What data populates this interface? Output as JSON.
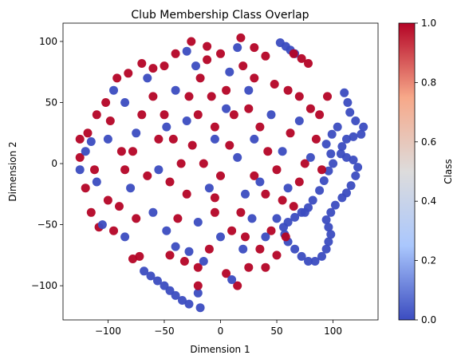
{
  "chart_data": {
    "type": "scatter",
    "title": "Club Membership Class Overlap",
    "xlabel": "Dimension 1",
    "ylabel": "Dimension 2",
    "xlim": [
      -140,
      140
    ],
    "ylim": [
      -128,
      115
    ],
    "xticks": [
      -100,
      -50,
      0,
      50,
      100
    ],
    "yticks": [
      -100,
      -50,
      0,
      50,
      100
    ],
    "grid": false,
    "legend": "none",
    "colormap": "coolwarm",
    "colormap_colors": [
      "#3b4cc0",
      "#aac7fd",
      "#dddcdc",
      "#f7a889",
      "#b40426"
    ],
    "colorbar": {
      "label": "Class",
      "range": [
        0,
        1
      ],
      "ticks": [
        0.0,
        0.2,
        0.4,
        0.6,
        0.8,
        1.0
      ],
      "tick_labels": [
        "0.0",
        "0.2",
        "0.4",
        "0.6",
        "0.8",
        "1.0"
      ]
    },
    "series": [
      {
        "class": 0,
        "color": "#3b4cc0",
        "points": [
          [
            110,
            58
          ],
          [
            113,
            50
          ],
          [
            115,
            42
          ],
          [
            120,
            35
          ],
          [
            127,
            30
          ],
          [
            125,
            24
          ],
          [
            118,
            22
          ],
          [
            112,
            20
          ],
          [
            108,
            14
          ],
          [
            107,
            8
          ],
          [
            112,
            5
          ],
          [
            118,
            3
          ],
          [
            122,
            -3
          ],
          [
            120,
            -10
          ],
          [
            116,
            -18
          ],
          [
            112,
            -24
          ],
          [
            108,
            -28
          ],
          [
            102,
            -34
          ],
          [
            98,
            -40
          ],
          [
            94,
            -46
          ],
          [
            96,
            -52
          ],
          [
            98,
            -58
          ],
          [
            96,
            -64
          ],
          [
            94,
            -70
          ],
          [
            90,
            -76
          ],
          [
            84,
            -80
          ],
          [
            78,
            -80
          ],
          [
            72,
            -76
          ],
          [
            66,
            -70
          ],
          [
            60,
            -64
          ],
          [
            57,
            -58
          ],
          [
            56,
            -52
          ],
          [
            60,
            -48
          ],
          [
            66,
            -44
          ],
          [
            72,
            -40
          ],
          [
            78,
            -36
          ],
          [
            82,
            -30
          ],
          [
            88,
            -22
          ],
          [
            92,
            -14
          ],
          [
            96,
            -6
          ],
          [
            100,
            0
          ],
          [
            98,
            8
          ],
          [
            94,
            16
          ],
          [
            99,
            24
          ],
          [
            104,
            30
          ],
          [
            53,
            99
          ],
          [
            58,
            96
          ],
          [
            62,
            93
          ],
          [
            66,
            90
          ],
          [
            -68,
            -88
          ],
          [
            -62,
            -92
          ],
          [
            -56,
            -96
          ],
          [
            -50,
            -100
          ],
          [
            -45,
            -104
          ],
          [
            -40,
            -108
          ],
          [
            -34,
            -112
          ],
          [
            -28,
            -115
          ],
          [
            -20,
            -106
          ],
          [
            -18,
            -118
          ],
          [
            -30,
            92
          ],
          [
            -22,
            80
          ],
          [
            -40,
            60
          ],
          [
            -48,
            30
          ],
          [
            -55,
            -5
          ],
          [
            -60,
            -40
          ],
          [
            -48,
            -55
          ],
          [
            -40,
            -68
          ],
          [
            -28,
            -72
          ],
          [
            -20,
            -48
          ],
          [
            -10,
            -20
          ],
          [
            -5,
            20
          ],
          [
            5,
            45
          ],
          [
            8,
            75
          ],
          [
            15,
            95
          ],
          [
            25,
            60
          ],
          [
            30,
            20
          ],
          [
            35,
            -15
          ],
          [
            28,
            -45
          ],
          [
            20,
            -70
          ],
          [
            10,
            -95
          ],
          [
            -95,
            60
          ],
          [
            -100,
            20
          ],
          [
            -110,
            -15
          ],
          [
            -105,
            -50
          ],
          [
            -85,
            -60
          ],
          [
            -80,
            -20
          ],
          [
            -75,
            25
          ],
          [
            -85,
            50
          ],
          [
            45,
            40
          ],
          [
            55,
            10
          ],
          [
            60,
            -20
          ],
          [
            50,
            -45
          ],
          [
            40,
            -60
          ],
          [
            70,
            35
          ],
          [
            80,
            5
          ],
          [
            75,
            -40
          ],
          [
            -120,
            10
          ],
          [
            -115,
            18
          ],
          [
            -125,
            -5
          ],
          [
            -65,
            70
          ],
          [
            -30,
            35
          ],
          [
            -15,
            -80
          ],
          [
            0,
            -60
          ],
          [
            15,
            5
          ],
          [
            22,
            -25
          ]
        ]
      },
      {
        "class": 1,
        "color": "#b40426",
        "points": [
          [
            -26,
            100
          ],
          [
            -12,
            96
          ],
          [
            0,
            90
          ],
          [
            18,
            103
          ],
          [
            30,
            95
          ],
          [
            40,
            88
          ],
          [
            -40,
            90
          ],
          [
            -50,
            80
          ],
          [
            -60,
            78
          ],
          [
            -70,
            82
          ],
          [
            -82,
            74
          ],
          [
            -92,
            70
          ],
          [
            -102,
            50
          ],
          [
            -110,
            40
          ],
          [
            -118,
            25
          ],
          [
            -125,
            5
          ],
          [
            -120,
            -20
          ],
          [
            -115,
            -40
          ],
          [
            -108,
            -52
          ],
          [
            -95,
            -55
          ],
          [
            -90,
            -35
          ],
          [
            -85,
            -5
          ],
          [
            -78,
            10
          ],
          [
            -70,
            40
          ],
          [
            -60,
            55
          ],
          [
            -50,
            40
          ],
          [
            -42,
            20
          ],
          [
            -35,
            0
          ],
          [
            -30,
            -25
          ],
          [
            -38,
            -45
          ],
          [
            -45,
            -75
          ],
          [
            -32,
            -80
          ],
          [
            -20,
            -85
          ],
          [
            -10,
            -70
          ],
          [
            -5,
            -40
          ],
          [
            0,
            -10
          ],
          [
            8,
            15
          ],
          [
            12,
            40
          ],
          [
            -8,
            55
          ],
          [
            -18,
            70
          ],
          [
            20,
            80
          ],
          [
            25,
            45
          ],
          [
            35,
            30
          ],
          [
            42,
            10
          ],
          [
            50,
            -5
          ],
          [
            55,
            -30
          ],
          [
            45,
            -55
          ],
          [
            35,
            -70
          ],
          [
            25,
            -85
          ],
          [
            15,
            -100
          ],
          [
            5,
            -90
          ],
          [
            60,
            60
          ],
          [
            70,
            55
          ],
          [
            80,
            45
          ],
          [
            88,
            40
          ],
          [
            95,
            55
          ],
          [
            85,
            20
          ],
          [
            75,
            0
          ],
          [
            70,
            -15
          ],
          [
            65,
            -35
          ],
          [
            58,
            -60
          ],
          [
            50,
            -75
          ],
          [
            40,
            -85
          ],
          [
            65,
            90
          ],
          [
            72,
            86
          ],
          [
            78,
            82
          ],
          [
            -78,
            -78
          ],
          [
            -72,
            -76
          ],
          [
            62,
            25
          ],
          [
            40,
            -25
          ],
          [
            30,
            -10
          ],
          [
            18,
            -40
          ],
          [
            10,
            -55
          ],
          [
            -15,
            0
          ],
          [
            -25,
            15
          ],
          [
            -5,
            30
          ],
          [
            5,
            60
          ],
          [
            -20,
            40
          ],
          [
            -55,
            20
          ],
          [
            -65,
            -10
          ],
          [
            -75,
            -45
          ],
          [
            -100,
            -30
          ],
          [
            -112,
            -5
          ],
          [
            -98,
            35
          ],
          [
            -88,
            10
          ],
          [
            -28,
            55
          ],
          [
            -12,
            85
          ],
          [
            -45,
            -15
          ],
          [
            48,
            65
          ],
          [
            30,
            70
          ],
          [
            -5,
            -28
          ],
          [
            22,
            -60
          ],
          [
            90,
            -5
          ],
          [
            -125,
            20
          ],
          [
            -20,
            -100
          ]
        ]
      }
    ]
  }
}
